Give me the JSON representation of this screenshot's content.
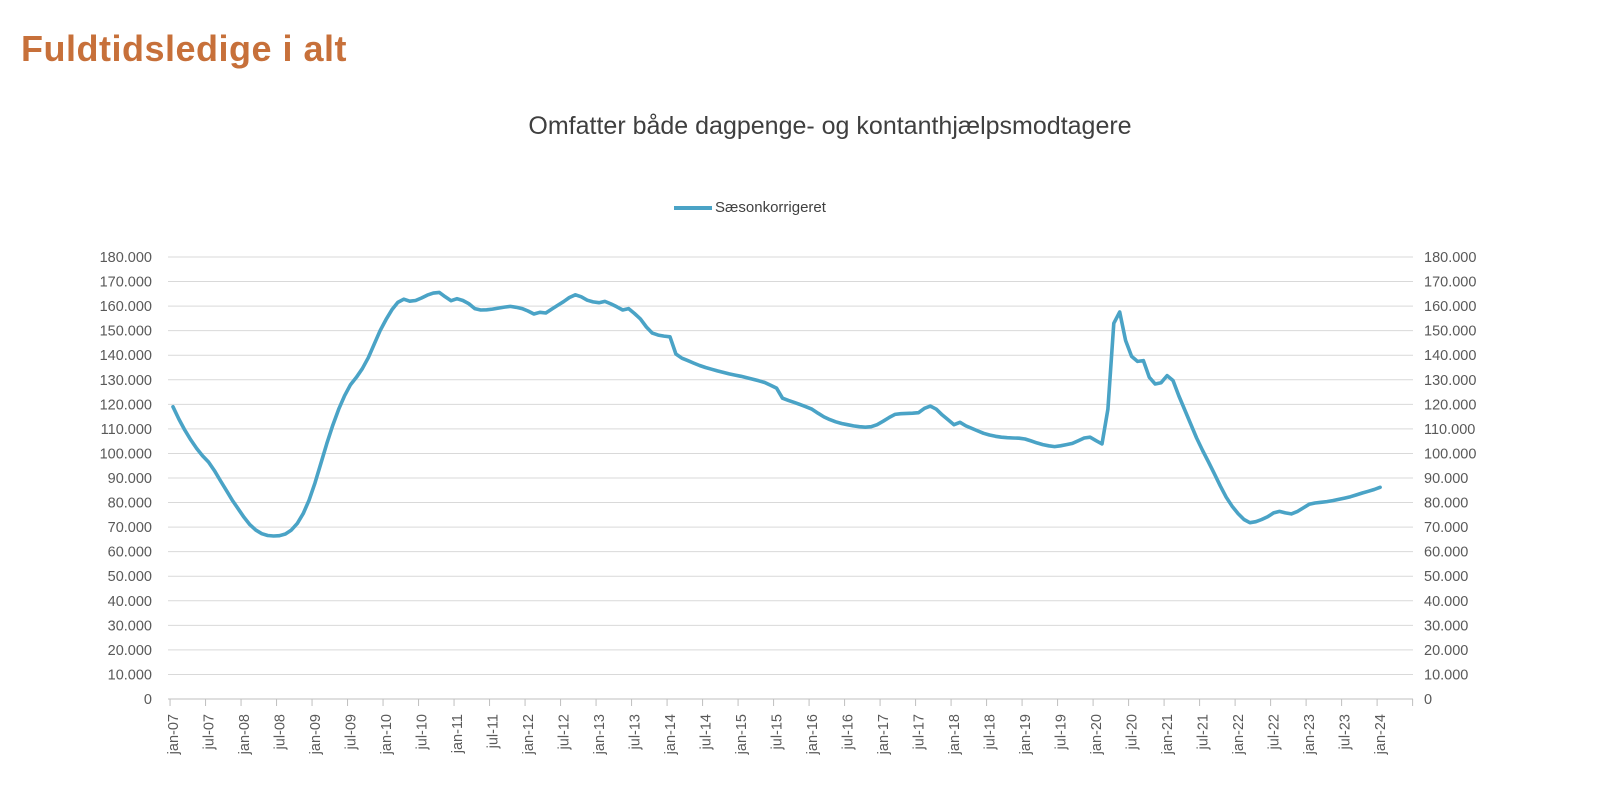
{
  "page": {
    "title": "Fuldtidsledige i alt",
    "subtitle": "Omfatter både dagpenge- og kontanthjælpsmodtagere"
  },
  "legend": {
    "label": "Sæsonkorrigeret"
  },
  "colors": {
    "title_text": "#c7703a",
    "subtitle_text": "#3f3f3f",
    "axis_text": "#595959",
    "gridline": "#d9d9d9",
    "axis_line": "#bfbfbf",
    "series_line": "#4aa3c6"
  },
  "chart_data": {
    "type": "line",
    "title": "Omfatter både dagpenge- og kontanthjælpsmodtagere",
    "legend_entries": [
      "Sæsonkorrigeret"
    ],
    "legend_position": "top",
    "grid": true,
    "xlabel": "",
    "ylabel": "",
    "ylim": [
      0,
      180000
    ],
    "y_tick_step": 10000,
    "y_tick_labels": [
      "0",
      "10.000",
      "20.000",
      "30.000",
      "40.000",
      "50.000",
      "60.000",
      "70.000",
      "80.000",
      "90.000",
      "100.000",
      "110.000",
      "120.000",
      "130.000",
      "140.000",
      "150.000",
      "160.000",
      "170.000",
      "180.000"
    ],
    "x_tick_labels": [
      "jan-07",
      "jul-07",
      "jan-08",
      "jul-08",
      "jan-09",
      "jul-09",
      "jan-10",
      "jul-10",
      "jan-11",
      "jul-11",
      "jan-12",
      "jul-12",
      "jan-13",
      "jul-13",
      "jan-14",
      "jul-14",
      "jan-15",
      "jul-15",
      "jan-16",
      "jul-16",
      "jan-17",
      "jul-17",
      "jan-18",
      "jul-18",
      "jan-19",
      "jul-19",
      "jan-20",
      "jul-20",
      "jan-21",
      "jul-21",
      "jan-22",
      "jul-22",
      "jan-23",
      "jul-23",
      "jan-24"
    ],
    "x_start": "jan-07",
    "x_end": "jan-24",
    "frequency": "monthly",
    "series": [
      {
        "name": "Sæsonkorrigeret",
        "color": "#4aa3c6",
        "values": [
          119000,
          114000,
          109500,
          105500,
          102000,
          99000,
          96500,
          93000,
          89000,
          85000,
          81000,
          77500,
          74000,
          71000,
          68800,
          67300,
          66600,
          66400,
          66500,
          67200,
          68800,
          71500,
          75500,
          81000,
          88000,
          96000,
          104000,
          111500,
          118000,
          123500,
          128000,
          131000,
          134500,
          139000,
          144500,
          150000,
          154500,
          158500,
          161500,
          162800,
          162000,
          162300,
          163300,
          164500,
          165300,
          165600,
          163800,
          162200,
          163000,
          162300,
          161000,
          159000,
          158400,
          158500,
          158800,
          159200,
          159600,
          159900,
          159500,
          159000,
          158000,
          156800,
          157500,
          157200,
          158800,
          160300,
          161800,
          163500,
          164600,
          163800,
          162400,
          161700,
          161400,
          161900,
          160900,
          159700,
          158400,
          159000,
          157000,
          154800,
          151500,
          149000,
          148200,
          147800,
          147500,
          140500,
          138800,
          137800,
          136800,
          135800,
          135000,
          134300,
          133600,
          133000,
          132400,
          131900,
          131400,
          130800,
          130200,
          129600,
          128900,
          127800,
          126600,
          122500,
          121600,
          120800,
          119900,
          119000,
          118000,
          116400,
          114900,
          113800,
          112900,
          112200,
          111700,
          111200,
          110900,
          110700,
          110900,
          111700,
          113100,
          114600,
          115900,
          116200,
          116300,
          116400,
          116600,
          118400,
          119300,
          118000,
          115700,
          113700,
          111700,
          112700,
          111200,
          110200,
          109200,
          108200,
          107500,
          107000,
          106600,
          106400,
          106300,
          106200,
          105900,
          105100,
          104300,
          103600,
          103100,
          102800,
          103100,
          103600,
          104100,
          105200,
          106300,
          106600,
          105200,
          103900,
          118000,
          153000,
          157600,
          146000,
          139500,
          137500,
          137800,
          131000,
          128300,
          128800,
          131700,
          129700,
          123400,
          117700,
          112000,
          106300,
          101200,
          96500,
          91700,
          86800,
          82200,
          78500,
          75500,
          73100,
          71800,
          72200,
          73100,
          74200,
          75800,
          76400,
          75800,
          75400,
          76300,
          77800,
          79300,
          79800,
          80100,
          80400,
          80800,
          81300,
          81800,
          82400,
          83100,
          83900,
          84600,
          85300,
          86200
        ]
      }
    ]
  }
}
